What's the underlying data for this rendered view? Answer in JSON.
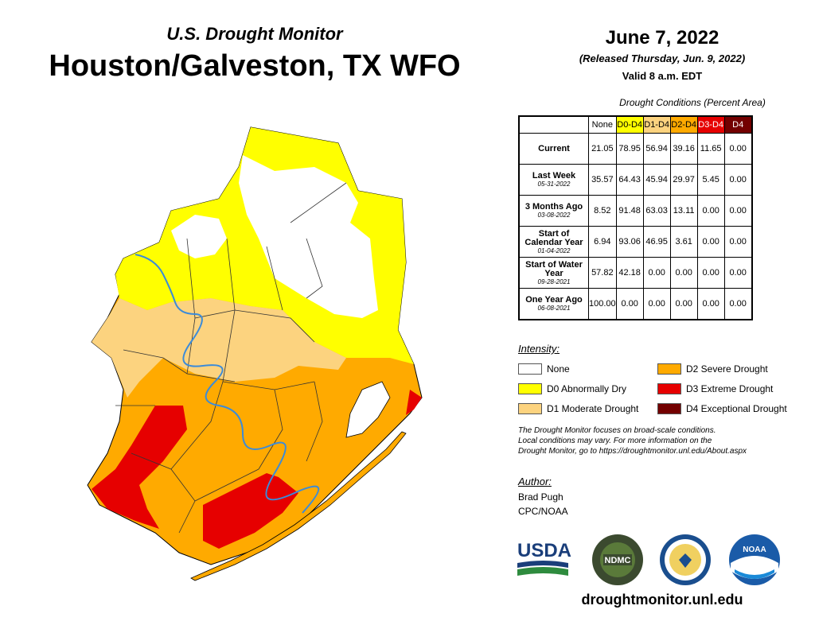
{
  "header": {
    "subtitle": "U.S. Drought Monitor",
    "title": "Houston/Galveston, TX WFO",
    "date": "June 7, 2022",
    "released": "(Released Thursday, Jun. 9, 2022)",
    "valid": "Valid 8 a.m. EDT"
  },
  "table": {
    "caption": "Drought Conditions (Percent Area)",
    "columns": [
      {
        "label": "None",
        "color": "#ffffff",
        "text_color": "#000000"
      },
      {
        "label": "D0-D4",
        "color": "#ffff00",
        "text_color": "#000000"
      },
      {
        "label": "D1-D4",
        "color": "#fcd37f",
        "text_color": "#000000"
      },
      {
        "label": "D2-D4",
        "color": "#ffaa00",
        "text_color": "#000000"
      },
      {
        "label": "D3-D4",
        "color": "#e60000",
        "text_color": "#ffffff"
      },
      {
        "label": "D4",
        "color": "#730000",
        "text_color": "#ffffff"
      }
    ],
    "rows": [
      {
        "label": "Current",
        "date": "",
        "values": [
          "21.05",
          "78.95",
          "56.94",
          "39.16",
          "11.65",
          "0.00"
        ]
      },
      {
        "label": "Last Week",
        "date": "05-31-2022",
        "values": [
          "35.57",
          "64.43",
          "45.94",
          "29.97",
          "5.45",
          "0.00"
        ]
      },
      {
        "label": "3 Months Ago",
        "date": "03-08-2022",
        "values": [
          "8.52",
          "91.48",
          "63.03",
          "13.11",
          "0.00",
          "0.00"
        ]
      },
      {
        "label": "Start of Calendar Year",
        "date": "01-04-2022",
        "values": [
          "6.94",
          "93.06",
          "46.95",
          "3.61",
          "0.00",
          "0.00"
        ]
      },
      {
        "label": "Start of Water Year",
        "date": "09-28-2021",
        "values": [
          "57.82",
          "42.18",
          "0.00",
          "0.00",
          "0.00",
          "0.00"
        ]
      },
      {
        "label": "One Year Ago",
        "date": "06-08-2021",
        "values": [
          "100.00",
          "0.00",
          "0.00",
          "0.00",
          "0.00",
          "0.00"
        ]
      }
    ]
  },
  "legend": {
    "title": "Intensity:",
    "items": [
      {
        "label": "None",
        "color": "#ffffff"
      },
      {
        "label": "D0 Abnormally Dry",
        "color": "#ffff00"
      },
      {
        "label": "D1 Moderate Drought",
        "color": "#fcd37f"
      },
      {
        "label": "D2 Severe Drought",
        "color": "#ffaa00"
      },
      {
        "label": "D3 Extreme Drought",
        "color": "#e60000"
      },
      {
        "label": "D4 Exceptional Drought",
        "color": "#730000"
      }
    ]
  },
  "disclaimer": {
    "line1": "The Drought Monitor focuses on broad-scale conditions.",
    "line2": "Local conditions may vary. For more information on the",
    "line3": "Drought Monitor, go to https://droughtmonitor.unl.edu/About.aspx"
  },
  "author": {
    "title": "Author:",
    "name": "Brad Pugh",
    "org": "CPC/NOAA"
  },
  "logos": {
    "usda": "USDA",
    "ndmc": "NDMC",
    "noaa": "NOAA"
  },
  "website": "droughtmonitor.unl.edu"
}
